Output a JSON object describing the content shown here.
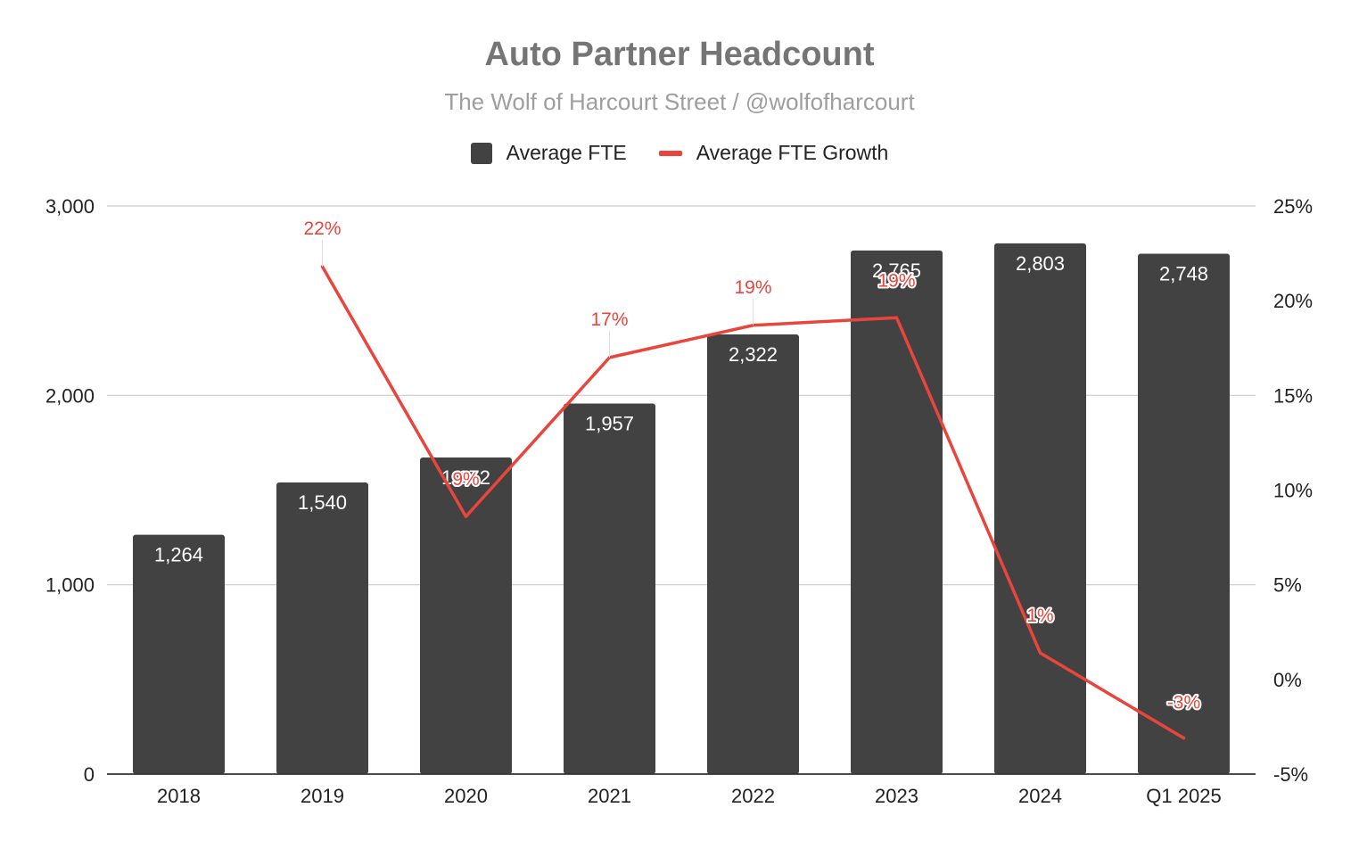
{
  "chart_data": {
    "type": "bar",
    "title": "Auto Partner Headcount",
    "subtitle": "The Wolf of Harcourt Street / @wolfofharcourt",
    "categories": [
      "2018",
      "2019",
      "2020",
      "2021",
      "2022",
      "2023",
      "2024",
      "Q1 2025"
    ],
    "series": [
      {
        "name": "Average FTE",
        "chart_type": "bar",
        "axis": "left",
        "color": "#424242",
        "values": [
          1264,
          1540,
          1672,
          1957,
          2322,
          2765,
          2803,
          2748
        ],
        "labels": [
          "1,264",
          "1,540",
          "1,672",
          "1,957",
          "2,322",
          "2,765",
          "2,803",
          "2,748"
        ]
      },
      {
        "name": "Average FTE Growth",
        "chart_type": "line",
        "axis": "right",
        "color": "#e8453c",
        "values": [
          null,
          21.8,
          8.6,
          17.0,
          18.7,
          19.1,
          1.4,
          -3.1
        ],
        "labels": [
          "",
          "22%",
          "9%",
          "17%",
          "19%",
          "19%",
          "1%",
          "-3%"
        ]
      }
    ],
    "y_left": {
      "min": 0,
      "max": 3000,
      "ticks": [
        0,
        1000,
        2000,
        3000
      ],
      "tick_labels": [
        "0",
        "1,000",
        "2,000",
        "3,000"
      ]
    },
    "y_right": {
      "min": -5,
      "max": 25,
      "ticks": [
        -5,
        0,
        5,
        10,
        15,
        20,
        25
      ],
      "tick_labels": [
        "-5%",
        "0%",
        "5%",
        "10%",
        "15%",
        "20%",
        "25%"
      ]
    },
    "grid": true,
    "legend": "top-center"
  }
}
